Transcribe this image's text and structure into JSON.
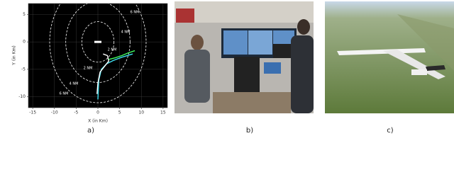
{
  "chart_data": {
    "type": "line",
    "xlabel": "X (in Km)",
    "ylabel": "Y (in Km)",
    "xlim": [
      -16,
      16
    ],
    "ylim": [
      -12,
      7
    ],
    "xticks": [
      -15,
      -10,
      -5,
      0,
      5,
      10,
      15
    ],
    "yticks": [
      -10,
      -5,
      0,
      5
    ],
    "background": "#000000",
    "annotations": [
      "6 NM",
      "4 NM",
      "2 NM",
      "2 NM",
      "4 NM",
      "6 NM"
    ],
    "series": [
      {
        "color": "#40e0f0",
        "x": [
          0,
          0.2,
          0.8,
          2,
          3.5,
          5.5,
          8
        ],
        "values": [
          -10.5,
          -7,
          -5,
          -4,
          -3.4,
          -2.8,
          -2.2
        ]
      },
      {
        "color": "#ffffff",
        "x": [
          -0.2,
          0,
          0.5,
          1.5,
          2.5,
          2.2,
          1.2
        ],
        "values": [
          -9.5,
          -7.5,
          -5.5,
          -4.5,
          -3.5,
          -2.5,
          -2.2
        ]
      },
      {
        "color": "#40ff60",
        "x": [
          2.5,
          4,
          5.5,
          7,
          8.5
        ],
        "values": [
          -3.2,
          -2.9,
          -2.5,
          -2,
          -1.6
        ]
      }
    ]
  },
  "captions": [
    "a)",
    "b)",
    "c)"
  ]
}
